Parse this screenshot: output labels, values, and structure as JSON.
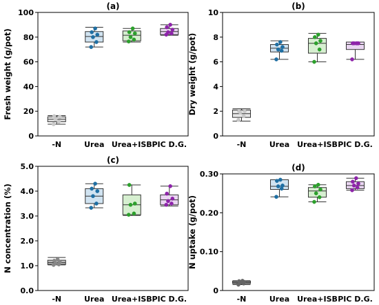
{
  "chart_data": [
    {
      "panel_label": "(a)",
      "type": "box",
      "ylabel": "Fresh weight (g/pot)",
      "ylim": [
        0,
        100
      ],
      "yticks": [
        0,
        20,
        40,
        60,
        80,
        100
      ],
      "ytick_labels": [
        "0",
        "20",
        "40",
        "60",
        "80",
        "100"
      ],
      "categories": [
        "-N",
        "Urea",
        "Urea+ISB",
        "PIC D.G."
      ],
      "colors": [
        "#c8c8c8",
        "#1f6fa3",
        "#2ca02c",
        "#8e24aa"
      ],
      "fills": [
        "#e6e6e6",
        "#d0e3f1",
        "#d6efd0",
        "#ead6f2"
      ],
      "boxes": [
        {
          "category": "-N",
          "min": 9.5,
          "q1": 11.5,
          "median": 13.5,
          "q3": 15.5,
          "max": 16.5,
          "points": [
            9.5,
            11.5,
            13.5,
            15.5,
            16
          ]
        },
        {
          "category": "Urea",
          "min": 72,
          "q1": 76,
          "median": 80.5,
          "q3": 84.5,
          "max": 88,
          "points": [
            72,
            76,
            80,
            82,
            84,
            87
          ]
        },
        {
          "category": "Urea+ISB",
          "min": 76,
          "q1": 77,
          "median": 81.5,
          "q3": 85,
          "max": 87,
          "points": [
            76.5,
            78,
            80,
            83,
            84,
            87
          ]
        },
        {
          "category": "PIC D.G.",
          "min": 81.5,
          "q1": 82,
          "median": 84.5,
          "q3": 87,
          "max": 90,
          "points": [
            82,
            83,
            84,
            86,
            88,
            90
          ]
        }
      ]
    },
    {
      "panel_label": "(b)",
      "type": "box",
      "ylabel": "Dry weight (g/pot)",
      "ylim": [
        0,
        10
      ],
      "yticks": [
        0,
        2,
        4,
        6,
        8,
        10
      ],
      "ytick_labels": [
        "0",
        "2",
        "4",
        "6",
        "8",
        "10"
      ],
      "categories": [
        "-N",
        "Urea",
        "Urea+ISB",
        "PIC D.G."
      ],
      "colors": [
        "#c8c8c8",
        "#1f6fa3",
        "#2ca02c",
        "#8e24aa"
      ],
      "fills": [
        "#e6e6e6",
        "#d0e3f1",
        "#d6efd0",
        "#ead6f2"
      ],
      "boxes": [
        {
          "category": "-N",
          "min": 1.2,
          "q1": 1.5,
          "median": 1.8,
          "q3": 2.1,
          "max": 2.2,
          "points": [
            1.3,
            1.6,
            1.9,
            2.0,
            2.0
          ]
        },
        {
          "category": "Urea",
          "min": 6.2,
          "q1": 6.8,
          "median": 7.1,
          "q3": 7.4,
          "max": 7.7,
          "points": [
            6.2,
            6.9,
            7.0,
            7.2,
            7.4,
            7.6
          ]
        },
        {
          "category": "Urea+ISB",
          "min": 6.0,
          "q1": 6.7,
          "median": 7.5,
          "q3": 7.9,
          "max": 8.3,
          "points": [
            6.0,
            7.0,
            7.5,
            7.7,
            8.0,
            8.2
          ]
        },
        {
          "category": "PIC D.G.",
          "min": 6.2,
          "q1": 7.0,
          "median": 7.4,
          "q3": 7.6,
          "max": 7.6,
          "points": [
            6.2,
            7.5,
            7.5,
            7.5,
            7.5,
            7.5
          ]
        }
      ]
    },
    {
      "panel_label": "(c)",
      "type": "box",
      "ylabel": "N concentration (%)",
      "ylim": [
        0,
        5
      ],
      "yticks": [
        0,
        1,
        2,
        3,
        4,
        5
      ],
      "ytick_labels": [
        "0.0",
        "1.0",
        "2.0",
        "3.0",
        "4.0",
        "5.0"
      ],
      "categories": [
        "-N",
        "Urea",
        "Urea+ISB",
        "PIC D.G."
      ],
      "colors": [
        "#888888",
        "#1f6fa3",
        "#2ca02c",
        "#8e24aa"
      ],
      "fills": [
        "#bdbdbd",
        "#d0e3f1",
        "#d6efd0",
        "#ead6f2"
      ],
      "boxes": [
        {
          "category": "-N",
          "min": 1.03,
          "q1": 1.05,
          "median": 1.12,
          "q3": 1.22,
          "max": 1.33,
          "points": [
            1.03,
            1.05,
            1.1,
            1.15,
            1.2,
            1.25
          ]
        },
        {
          "category": "Urea",
          "min": 3.33,
          "q1": 3.5,
          "median": 3.8,
          "q3": 4.1,
          "max": 4.3,
          "points": [
            3.33,
            3.5,
            3.8,
            4.0,
            4.1,
            4.3
          ]
        },
        {
          "category": "Urea+ISB",
          "min": 3.02,
          "q1": 3.05,
          "median": 3.45,
          "q3": 3.85,
          "max": 4.25,
          "points": [
            3.05,
            3.1,
            3.45,
            3.5,
            4.25
          ]
        },
        {
          "category": "PIC D.G.",
          "min": 3.4,
          "q1": 3.45,
          "median": 3.65,
          "q3": 3.85,
          "max": 4.2,
          "points": [
            3.45,
            3.5,
            3.6,
            3.7,
            3.9,
            4.2
          ]
        }
      ]
    },
    {
      "panel_label": "(d)",
      "type": "box",
      "ylabel": "N uptake (g/pot)",
      "ylim": [
        0,
        0.3
      ],
      "yticks": [
        0,
        0.1,
        0.2,
        0.3
      ],
      "ytick_labels": [
        "0",
        "0.10",
        "0.20",
        "0.30"
      ],
      "categories": [
        "-N",
        "Urea",
        "Urea+ISB",
        "PIC D.G."
      ],
      "colors": [
        "#666666",
        "#1f6fa3",
        "#2ca02c",
        "#8e24aa"
      ],
      "fills": [
        "#999999",
        "#d0e3f1",
        "#d6efd0",
        "#ead6f2"
      ],
      "boxes": [
        {
          "category": "-N",
          "min": 0.015,
          "q1": 0.018,
          "median": 0.02,
          "q3": 0.024,
          "max": 0.025,
          "points": [
            0.015,
            0.018,
            0.02,
            0.022,
            0.024,
            0.025
          ]
        },
        {
          "category": "Urea",
          "min": 0.241,
          "q1": 0.26,
          "median": 0.268,
          "q3": 0.285,
          "max": 0.285,
          "points": [
            0.241,
            0.262,
            0.268,
            0.27,
            0.282,
            0.285
          ]
        },
        {
          "category": "Urea+ISB",
          "min": 0.228,
          "q1": 0.24,
          "median": 0.256,
          "q3": 0.265,
          "max": 0.272,
          "points": [
            0.228,
            0.24,
            0.25,
            0.26,
            0.268,
            0.272
          ]
        },
        {
          "category": "PIC D.G.",
          "min": 0.258,
          "q1": 0.262,
          "median": 0.27,
          "q3": 0.28,
          "max": 0.289,
          "points": [
            0.258,
            0.265,
            0.27,
            0.275,
            0.28,
            0.289
          ]
        }
      ]
    }
  ]
}
